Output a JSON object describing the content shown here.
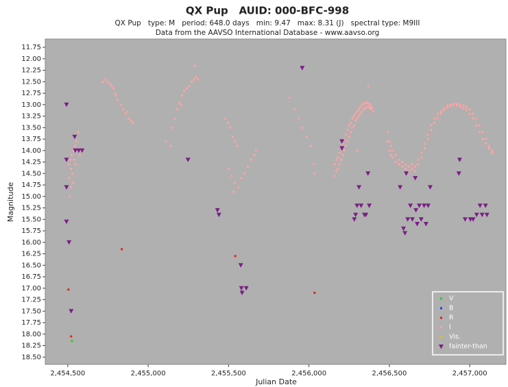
{
  "chart_data": {
    "type": "scatter",
    "title": "QX Pup   AUID: 000-BFC-998",
    "subtitle": "QX Pup   type: M   period: 648.0 days   min: 9.47   max: 8.31 (J)   spectral type: M9III",
    "source": "Data from the AAVSO International Database - www.aavso.org",
    "x_label": "Julian Date",
    "y_label": "Magnitude",
    "xlim": [
      2454360,
      2457225
    ],
    "ylim": [
      11.57,
      18.66
    ],
    "y_inverted": true,
    "background": "#b0b0b0",
    "legend_position": "lower right",
    "xticks": [
      {
        "value": 2454500,
        "label": "2,454,500"
      },
      {
        "value": 2455000,
        "label": "2,455,000"
      },
      {
        "value": 2455500,
        "label": "2,455,500"
      },
      {
        "value": 2456000,
        "label": "2,456,000"
      },
      {
        "value": 2456500,
        "label": "2,456,500"
      },
      {
        "value": 2457000,
        "label": "2,457,000"
      }
    ],
    "yticks": [
      11.75,
      {
        "value": 12,
        "label": "12.00"
      },
      12.25,
      {
        "value": 12.5,
        "label": "12.50"
      },
      12.75,
      {
        "value": 13,
        "label": "13.00"
      },
      13.25,
      {
        "value": 13.5,
        "label": "13.50"
      },
      13.75,
      {
        "value": 14,
        "label": "14.00"
      },
      14.25,
      {
        "value": 14.5,
        "label": "14.50"
      },
      14.75,
      {
        "value": 15,
        "label": "15.00"
      },
      15.25,
      {
        "value": 15.5,
        "label": "15.50"
      },
      15.75,
      {
        "value": 16,
        "label": "16.00"
      },
      16.25,
      {
        "value": 16.5,
        "label": "16.50"
      },
      16.75,
      {
        "value": 17,
        "label": "17.00"
      },
      17.25,
      {
        "value": 17.5,
        "label": "17.50"
      },
      17.75,
      {
        "value": 18,
        "label": "18.00"
      },
      18.25,
      {
        "value": 18.5,
        "label": "18.50"
      }
    ],
    "series": [
      {
        "name": "V",
        "color": "#22cc22",
        "marker": "square",
        "x": [
          2454526
        ],
        "values": [
          18.15
        ]
      },
      {
        "name": "B",
        "color": "#1f3fe0",
        "marker": "square",
        "x": [],
        "values": []
      },
      {
        "name": "R",
        "color": "#e8200a",
        "marker": "square",
        "x": [
          2454504,
          2454521,
          2454836,
          2455542,
          2456035
        ],
        "values": [
          17.03,
          18.05,
          16.15,
          16.3,
          17.1
        ]
      },
      {
        "name": "I",
        "color": "#ffa3a3",
        "marker": "square",
        "x": [
          2454505,
          2454510,
          2454515,
          2454520,
          2454525,
          2454530,
          2454535,
          2454540,
          2454545,
          2454550,
          2454555,
          2454560,
          2454565,
          2454512,
          2454522,
          2454532,
          2454575,
          2454585,
          2454720,
          2454735,
          2454750,
          2454765,
          2454775,
          2454785,
          2454795,
          2454810,
          2454830,
          2454845,
          2454860,
          2454880,
          2454895,
          2454905,
          2454800,
          2454870,
          2455110,
          2455140,
          2455150,
          2455165,
          2455180,
          2455195,
          2455210,
          2455225,
          2455240,
          2455255,
          2455270,
          2455285,
          2455300,
          2455310,
          2455290,
          2455205,
          2455480,
          2455495,
          2455510,
          2455525,
          2455540,
          2455555,
          2455500,
          2455520,
          2455540,
          2455560,
          2455580,
          2455600,
          2455620,
          2455640,
          2455660,
          2455670,
          2455530,
          2455880,
          2455910,
          2455935,
          2455960,
          2455985,
          2456010,
          2456030,
          2456035,
          2456160,
          2456160,
          2456170,
          2456170,
          2456180,
          2456180,
          2456190,
          2456190,
          2456200,
          2456200,
          2456210,
          2456210,
          2456220,
          2456220,
          2456230,
          2456230,
          2456240,
          2456240,
          2456250,
          2456250,
          2456260,
          2456260,
          2456270,
          2456270,
          2456280,
          2456280,
          2456290,
          2456290,
          2456300,
          2456300,
          2456310,
          2456310,
          2456320,
          2456320,
          2456330,
          2456330,
          2456340,
          2456340,
          2456350,
          2456350,
          2456360,
          2456360,
          2456370,
          2456370,
          2456380,
          2456380,
          2456390,
          2456390,
          2456400,
          2456370,
          2456300,
          2456490,
          2456490,
          2456500,
          2456500,
          2456510,
          2456510,
          2456520,
          2456520,
          2456540,
          2456540,
          2456560,
          2456560,
          2456580,
          2456580,
          2456600,
          2456600,
          2456620,
          2456620,
          2456640,
          2456640,
          2456660,
          2456660,
          2456680,
          2456680,
          2456700,
          2456700,
          2456720,
          2456720,
          2456740,
          2456740,
          2456760,
          2456760,
          2456780,
          2456780,
          2456800,
          2456800,
          2456820,
          2456820,
          2456840,
          2456840,
          2456860,
          2456860,
          2456880,
          2456880,
          2456900,
          2456900,
          2456920,
          2456920,
          2456940,
          2456940,
          2456960,
          2456960,
          2456980,
          2456980,
          2457000,
          2457000,
          2457020,
          2457020,
          2457040,
          2457040,
          2457060,
          2457060,
          2457080,
          2457080,
          2457100,
          2457100,
          2457120,
          2457120,
          2457140,
          2457140
        ],
        "values": [
          14.3,
          14.6,
          14.2,
          14.4,
          14.1,
          14.5,
          14.0,
          14.2,
          13.9,
          14.3,
          13.8,
          14.0,
          13.6,
          15.0,
          14.8,
          14.7,
          14.1,
          14.0,
          12.5,
          12.45,
          12.5,
          12.55,
          12.6,
          12.65,
          12.75,
          12.9,
          13.0,
          13.1,
          13.2,
          13.3,
          13.35,
          13.4,
          12.8,
          13.15,
          13.8,
          13.9,
          13.5,
          13.3,
          13.1,
          12.95,
          12.8,
          12.7,
          12.65,
          12.6,
          12.5,
          12.45,
          12.4,
          12.45,
          12.15,
          13.0,
          13.3,
          13.4,
          13.5,
          13.7,
          13.8,
          13.9,
          14.4,
          14.55,
          14.7,
          14.8,
          14.6,
          14.5,
          14.35,
          14.2,
          14.1,
          14.0,
          14.9,
          12.85,
          13.1,
          13.3,
          13.5,
          13.7,
          13.9,
          14.3,
          14.5,
          14.55,
          14.3,
          14.45,
          14.2,
          14.4,
          14.15,
          14.3,
          14.05,
          14.2,
          13.95,
          14.1,
          13.85,
          14.0,
          13.75,
          13.9,
          13.65,
          13.8,
          13.55,
          13.7,
          13.45,
          13.6,
          13.4,
          13.5,
          13.3,
          13.45,
          13.25,
          13.35,
          13.2,
          13.3,
          13.15,
          13.25,
          13.1,
          13.2,
          13.05,
          13.15,
          13.0,
          13.1,
          12.98,
          13.08,
          12.97,
          13.05,
          12.96,
          13.05,
          12.97,
          13.08,
          13.0,
          13.1,
          13.05,
          13.15,
          12.6,
          14.0,
          13.6,
          13.8,
          13.8,
          14.0,
          13.9,
          14.1,
          14.0,
          14.15,
          14.1,
          14.25,
          14.2,
          14.3,
          14.25,
          14.35,
          14.3,
          14.4,
          14.35,
          14.45,
          14.4,
          14.3,
          14.35,
          14.45,
          14.3,
          14.2,
          14.15,
          14.05,
          13.95,
          13.85,
          13.75,
          13.65,
          13.55,
          13.45,
          13.4,
          13.3,
          13.3,
          13.2,
          13.2,
          13.15,
          13.12,
          13.08,
          13.06,
          13.02,
          13.03,
          13.0,
          13.0,
          12.98,
          12.98,
          13.02,
          13.0,
          13.05,
          13.02,
          13.08,
          13.05,
          13.12,
          13.1,
          13.2,
          13.2,
          13.3,
          13.3,
          13.45,
          13.45,
          13.6,
          13.6,
          13.75,
          13.75,
          13.85,
          13.9,
          13.95,
          14.0,
          14.05
        ]
      },
      {
        "name": "Vis.",
        "color": "#e8c000",
        "marker": "square",
        "x": [],
        "values": []
      },
      {
        "name": "fainter-than",
        "color": "#7a1f86",
        "marker": "triangle",
        "x": [
          2454492,
          2454492,
          2454492,
          2454492,
          2454508,
          2454521,
          2454543,
          2454547,
          2454568,
          2454589,
          2455248,
          2455431,
          2455440,
          2455576,
          2455580,
          2455610,
          2455584,
          2455958,
          2456205,
          2456205,
          2456282,
          2456290,
          2456299,
          2456311,
          2456324,
          2456345,
          2456367,
          2456375,
          2456354,
          2456567,
          2456588,
          2456597,
          2456605,
          2456614,
          2456631,
          2456643,
          2456661,
          2456665,
          2456673,
          2456686,
          2456698,
          2456716,
          2456728,
          2456741,
          2456754,
          2456937,
          2456932,
          2456971,
          2457004,
          2457021,
          2457043,
          2457064,
          2457077,
          2457098,
          2457107
        ],
        "values": [
          13.0,
          14.2,
          14.8,
          15.55,
          16.0,
          17.5,
          13.7,
          14.0,
          14.0,
          14.0,
          14.2,
          15.3,
          15.4,
          16.5,
          17.0,
          17.0,
          17.1,
          12.2,
          13.8,
          13.95,
          15.5,
          15.4,
          15.2,
          14.8,
          15.2,
          15.4,
          14.5,
          15.2,
          15.4,
          14.8,
          15.7,
          15.8,
          14.5,
          15.5,
          15.2,
          15.5,
          14.6,
          15.3,
          15.6,
          15.2,
          15.5,
          15.2,
          15.6,
          15.2,
          14.8,
          14.2,
          14.5,
          15.5,
          15.5,
          15.5,
          15.4,
          15.2,
          15.4,
          15.2,
          15.4
        ]
      }
    ]
  }
}
